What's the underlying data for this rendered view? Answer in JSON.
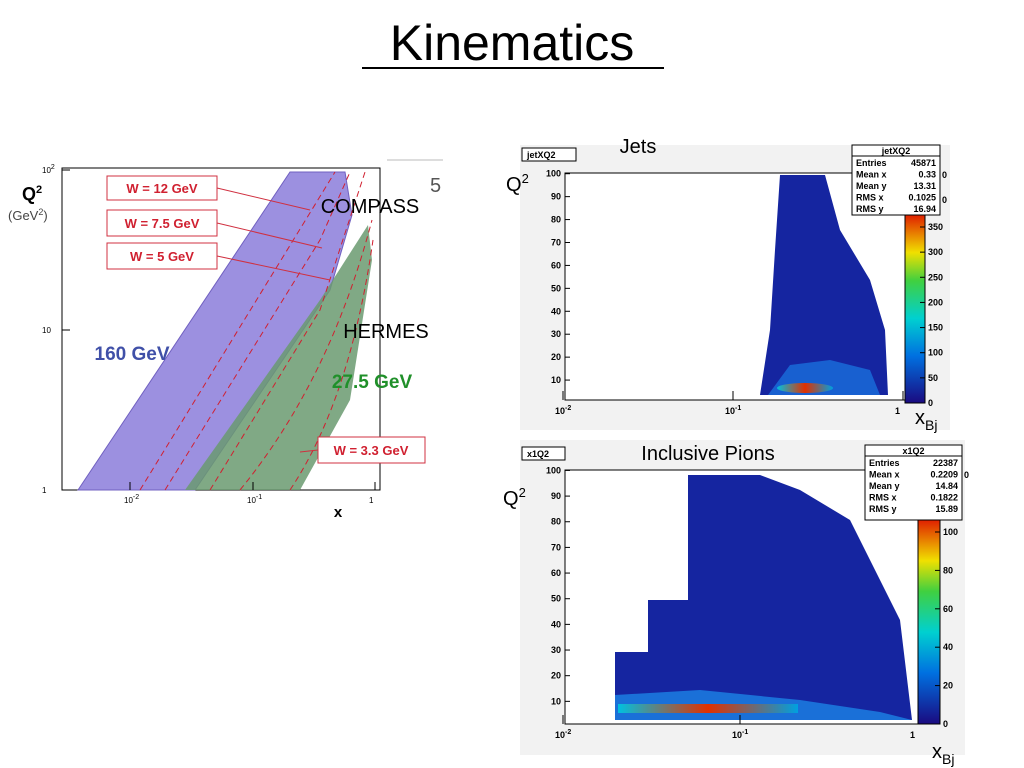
{
  "title": "Kinematics",
  "left_plot": {
    "y_label": [
      "Q",
      "2"
    ],
    "y_unit": [
      "(GeV",
      "2",
      ")"
    ],
    "y_ticks": [
      [
        "10",
        "2"
      ],
      [
        "10",
        ""
      ],
      [
        "1",
        ""
      ]
    ],
    "x_ticks": [
      [
        "10",
        "-2"
      ],
      [
        "10",
        "-1"
      ],
      [
        "1",
        ""
      ]
    ],
    "x_label": "x",
    "w_labels": [
      "W = 12 GeV",
      "W = 7.5 GeV",
      "W = 5 GeV",
      "W = 3.3 GeV"
    ],
    "beam_labels": [
      "160 GeV",
      "27.5 GeV"
    ],
    "experiments": [
      "COMPASS",
      "HERMES"
    ],
    "page_mark": "5"
  },
  "right_plots": [
    {
      "caption": "Jets",
      "hist_name": "jetXQ2",
      "stats": [
        [
          "Entries",
          "45871"
        ],
        [
          "Mean x",
          "0.33"
        ],
        [
          "Mean y",
          "13.31"
        ],
        [
          "RMS x",
          "0.1025"
        ],
        [
          "RMS y",
          "16.94"
        ]
      ],
      "z_fragments": [
        "0",
        "0"
      ],
      "z_ticks": [
        350,
        300,
        250,
        200,
        150,
        100,
        50,
        0
      ],
      "y_ticks": [
        10,
        20,
        30,
        40,
        50,
        60,
        70,
        80,
        90,
        100
      ],
      "x_ticks": [
        [
          "10",
          "-2"
        ],
        [
          "10",
          "-1"
        ],
        [
          "1",
          ""
        ]
      ],
      "y_label": [
        "Q",
        "2"
      ],
      "x_label": [
        "x",
        "Bj"
      ]
    },
    {
      "caption": "Inclusive Pions",
      "hist_name": "x1Q2",
      "stats": [
        [
          "Entries",
          "22387"
        ],
        [
          "Mean x",
          "0.2209"
        ],
        [
          "Mean y",
          "14.84"
        ],
        [
          "RMS x",
          "0.1822"
        ],
        [
          "RMS y",
          "15.89"
        ]
      ],
      "z_fragments": [
        "0"
      ],
      "z_ticks": [
        100,
        80,
        60,
        40,
        20,
        0
      ],
      "y_ticks": [
        10,
        20,
        30,
        40,
        50,
        60,
        70,
        80,
        90,
        100
      ],
      "x_ticks": [
        [
          "10",
          "-2"
        ],
        [
          "10",
          "-1"
        ],
        [
          "1",
          ""
        ]
      ],
      "y_label": [
        "Q",
        "2"
      ],
      "x_label": [
        "x",
        "Bj"
      ]
    }
  ]
}
